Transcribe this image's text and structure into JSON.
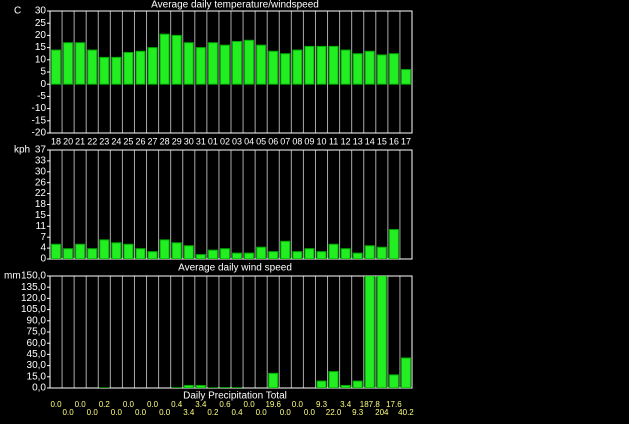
{
  "chart_data": [
    {
      "type": "bar",
      "title": "Average daily temperature/windspeed",
      "unit": "C",
      "color": "#22ee22",
      "categories": [
        "18",
        "20",
        "21",
        "22",
        "23",
        "24",
        "25",
        "26",
        "27",
        "28",
        "29",
        "30",
        "31",
        "01",
        "02",
        "03",
        "04",
        "05",
        "06",
        "07",
        "08",
        "09",
        "10",
        "11",
        "12",
        "13",
        "14",
        "15",
        "16",
        "17"
      ],
      "values": [
        14,
        17,
        17,
        14,
        11,
        11,
        13,
        13.5,
        15,
        20.5,
        20,
        17,
        15,
        17,
        16,
        17.5,
        18,
        16,
        13.5,
        12.5,
        14,
        15.5,
        15.5,
        15.5,
        14,
        12.5,
        13.5,
        12,
        12.5,
        6
      ],
      "ylim": [
        -20,
        30
      ],
      "yticks": [
        -20,
        -15,
        -10,
        -5,
        0,
        5,
        10,
        15,
        20,
        25,
        30
      ],
      "grid": true
    },
    {
      "type": "bar",
      "title": "Average daily wind speed",
      "unit": "kph",
      "color": "#22ee22",
      "values": [
        5,
        3.5,
        5,
        3.5,
        6.5,
        5.5,
        5,
        3.5,
        2.5,
        6.5,
        5.5,
        4.5,
        1.5,
        3,
        3.5,
        2,
        2,
        4,
        2.5,
        6,
        2.5,
        3.5,
        2.5,
        5,
        3.5,
        2,
        4.5,
        4,
        10,
        null
      ],
      "ylim": [
        0,
        37
      ],
      "yticks": [
        0,
        {
          "value": 3.7,
          "label": "4"
        },
        {
          "value": 7.4,
          "label": "7"
        },
        {
          "value": 11.1,
          "label": "11"
        },
        {
          "value": 14.8,
          "label": "15"
        },
        {
          "value": 18.5,
          "label": "18"
        },
        {
          "value": 22.2,
          "label": "22"
        },
        {
          "value": 25.9,
          "label": "26"
        },
        {
          "value": 29.6,
          "label": "30"
        },
        {
          "value": 33.3,
          "label": "33"
        },
        37
      ],
      "grid": true
    },
    {
      "type": "bar",
      "title": "Daily Precipitation Total",
      "unit": "mm",
      "color": "#22ee22",
      "values": [
        0,
        0,
        0,
        0,
        0.2,
        0,
        0,
        0,
        0,
        0,
        0.4,
        3.4,
        3.4,
        0.2,
        0.6,
        0.4,
        0,
        0,
        19.6,
        0,
        0,
        0,
        9.3,
        22,
        3.4,
        9.3,
        187.8,
        204,
        17.6,
        40.2
      ],
      "value_labels": [
        "0.0",
        "0.0",
        "0.0",
        "0.0",
        "0.2",
        "0.0",
        "0.0",
        "0.0",
        "0.0",
        "0.0",
        "0.4",
        "3.4",
        "3.4",
        "0.2",
        "0.6",
        "0.4",
        "0.0",
        "0.0",
        "19.6",
        "0.0",
        "0.0",
        "0.0",
        "9.3",
        "22.0",
        "3.4",
        "9.3",
        "187.8",
        "204",
        "17.6",
        "40.2"
      ],
      "ylim": [
        0,
        150
      ],
      "yticks": [
        {
          "value": 0,
          "label": "0,0"
        },
        {
          "value": 15,
          "label": "15,0"
        },
        {
          "value": 30,
          "label": "30,0"
        },
        {
          "value": 45,
          "label": "45,0"
        },
        {
          "value": 60,
          "label": "60,0"
        },
        {
          "value": 75,
          "label": "75,0"
        },
        {
          "value": 90,
          "label": "90,0"
        },
        {
          "value": 105,
          "label": "105,0"
        },
        {
          "value": 120,
          "label": "120,0"
        },
        {
          "value": 135,
          "label": "135,0"
        },
        {
          "value": 150,
          "label": "150,0"
        }
      ],
      "grid": true
    }
  ]
}
